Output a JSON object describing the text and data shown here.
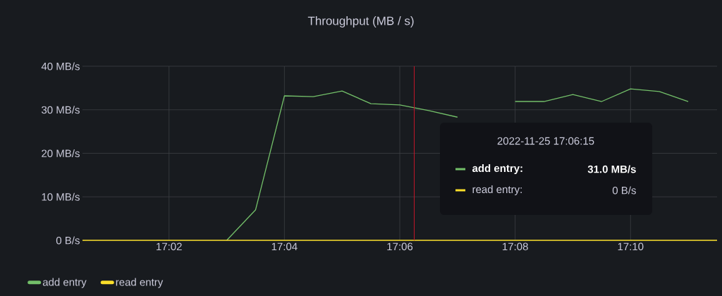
{
  "chart_data": {
    "type": "line",
    "title": "Throughput (MB / s)",
    "xlim": [
      17.008333,
      17.191667
    ],
    "xticks": [
      {
        "value": 17.033333,
        "label": "17:02"
      },
      {
        "value": 17.066667,
        "label": "17:04"
      },
      {
        "value": 17.1,
        "label": "17:06"
      },
      {
        "value": 17.133333,
        "label": "17:08"
      },
      {
        "value": 17.166667,
        "label": "17:10"
      }
    ],
    "ylim": [
      0,
      40
    ],
    "yticks": [
      {
        "value": 0,
        "label": "0 B/s"
      },
      {
        "value": 10,
        "label": "10 MB/s"
      },
      {
        "value": 20,
        "label": "20 MB/s"
      },
      {
        "value": 30,
        "label": "30 MB/s"
      },
      {
        "value": 40,
        "label": "40 MB/s"
      }
    ],
    "grid": true,
    "legend": "bottom left",
    "marker": "none",
    "line_style": "solid",
    "series": [
      {
        "name": "add entry",
        "color": "#73bf69",
        "x": [
          17.05,
          17.058333,
          17.066667,
          17.075,
          17.083333,
          17.091667,
          17.1,
          17.108333,
          17.116667,
          17.125,
          17.133333,
          17.141667,
          17.15,
          17.158333,
          17.166667,
          17.175,
          17.183333
        ],
        "values": [
          0,
          7.0,
          33.2,
          33.0,
          34.3,
          31.4,
          31.1,
          29.8,
          28.3,
          null,
          31.9,
          31.9,
          33.5,
          31.9,
          34.8,
          34.2,
          31.9
        ]
      },
      {
        "name": "read entry",
        "color": "#fade2a",
        "x": [
          17.008333,
          17.016667,
          17.025,
          17.033333,
          17.041667,
          17.05,
          17.058333,
          17.066667,
          17.075,
          17.083333,
          17.091667,
          17.1,
          17.108333,
          17.116667,
          17.125,
          17.133333,
          17.141667,
          17.15,
          17.158333,
          17.166667,
          17.175,
          17.183333,
          17.191667
        ],
        "values": [
          0,
          0,
          0,
          0,
          0,
          0,
          0,
          0,
          0,
          0,
          0,
          0,
          0,
          0,
          0,
          0,
          0,
          0,
          0,
          0,
          0,
          0,
          0
        ]
      }
    ],
    "ref_lines": [
      {
        "axis": "x",
        "value": 17.104167,
        "color": "#c4162a"
      }
    ],
    "annotations": [
      "2022-11-25 17:06:15",
      "add entry:",
      "31.0 MB/s",
      "read entry:",
      "0 B/s"
    ]
  }
}
